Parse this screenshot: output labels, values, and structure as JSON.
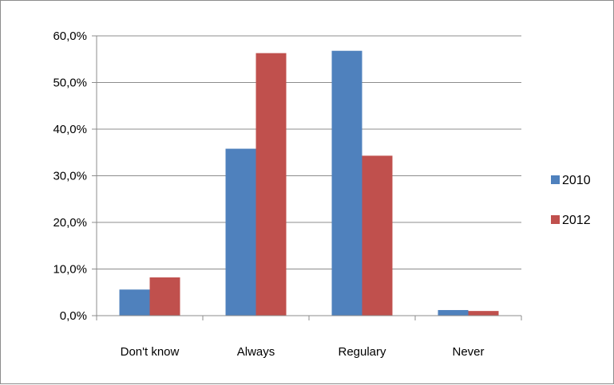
{
  "chart_data": {
    "type": "bar",
    "categories": [
      "Don't know",
      "Always",
      "Regulary",
      "Never"
    ],
    "series": [
      {
        "name": "2010",
        "color": "#4f81bd",
        "values": [
          5.6,
          35.8,
          56.8,
          1.2
        ]
      },
      {
        "name": "2012",
        "color": "#c0504d",
        "values": [
          8.2,
          56.3,
          34.3,
          1.0
        ]
      }
    ],
    "y_tick_labels": [
      "0,0%",
      "10,0%",
      "20,0%",
      "30,0%",
      "40,0%",
      "50,0%",
      "60,0%"
    ],
    "y_ticks": [
      0,
      10,
      20,
      30,
      40,
      50,
      60
    ],
    "ylim": [
      0,
      60
    ],
    "title": "",
    "xlabel": "",
    "ylabel": "",
    "grid": true,
    "legend_position": "right"
  }
}
